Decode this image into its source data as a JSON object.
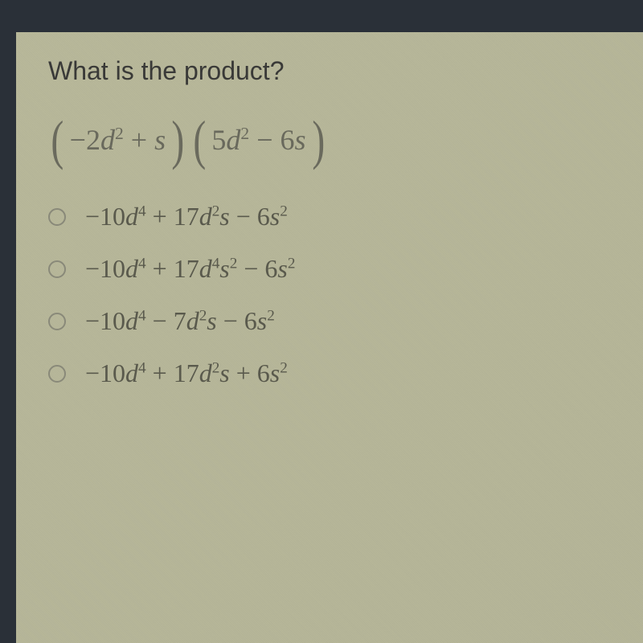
{
  "question": {
    "prompt": "What is the product?",
    "expression": {
      "part1": "−2",
      "var1": "d",
      "exp1": "2",
      "plus": " + ",
      "var2": "s",
      "part2": "5",
      "var3": "d",
      "exp2": "2",
      "minus": " − 6",
      "var4": "s"
    }
  },
  "options": [
    {
      "c1": "−10",
      "v1": "d",
      "e1": "4",
      "c2": " + 17",
      "v2": "d",
      "e2": "2",
      "v3": "s",
      "c3": " − 6",
      "v4": "s",
      "e3": "2"
    },
    {
      "c1": "−10",
      "v1": "d",
      "e1": "4",
      "c2": " + 17",
      "v2": "d",
      "e2": "4",
      "v3": "s",
      "e2b": "2",
      "c3": " − 6",
      "v4": "s",
      "e3": "2"
    },
    {
      "c1": "−10",
      "v1": "d",
      "e1": "4",
      "c2": " − 7",
      "v2": "d",
      "e2": "2",
      "v3": "s",
      "c3": " − 6",
      "v4": "s",
      "e3": "2"
    },
    {
      "c1": "−10",
      "v1": "d",
      "e1": "4",
      "c2": " + 17",
      "v2": "d",
      "e2": "2",
      "v3": "s",
      "c3": " + 6",
      "v4": "s",
      "e3": "2"
    }
  ],
  "colors": {
    "background_dark": "#2a3038",
    "paper_bg": "#b8b89a",
    "text_dark": "#3a3a38",
    "text_math": "#6a6a5d",
    "radio_border": "#8a8a7a"
  }
}
